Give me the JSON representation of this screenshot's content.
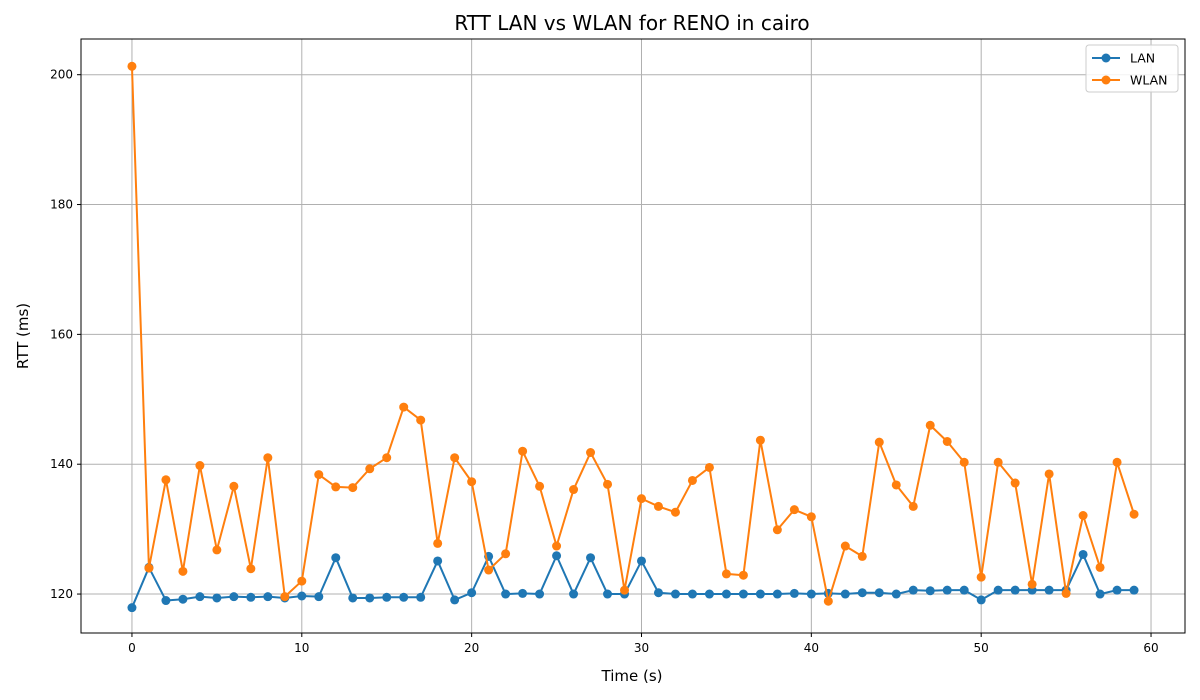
{
  "chart_data": {
    "type": "line",
    "title": "RTT LAN vs WLAN for RENO in cairo",
    "xlabel": "Time (s)",
    "ylabel": "RTT (ms)",
    "xlim": [
      -3,
      62
    ],
    "ylim": [
      114,
      205.5
    ],
    "xticks": [
      0,
      10,
      20,
      30,
      40,
      50,
      60
    ],
    "yticks": [
      120,
      140,
      160,
      180,
      200
    ],
    "grid": true,
    "legend_position": "top-right",
    "x": [
      0,
      1,
      2,
      3,
      4,
      5,
      6,
      7,
      8,
      9,
      10,
      11,
      12,
      13,
      14,
      15,
      16,
      17,
      18,
      19,
      20,
      21,
      22,
      23,
      24,
      25,
      26,
      27,
      28,
      29,
      30,
      31,
      32,
      33,
      34,
      35,
      36,
      37,
      38,
      39,
      40,
      41,
      42,
      43,
      44,
      45,
      46,
      47,
      48,
      49,
      50,
      51,
      52,
      53,
      54,
      55,
      56,
      57,
      58,
      59
    ],
    "series": [
      {
        "name": "LAN",
        "color": "#1f77b4",
        "values": [
          117.9,
          124.1,
          119.0,
          119.2,
          119.6,
          119.4,
          119.6,
          119.5,
          119.6,
          119.4,
          119.7,
          119.6,
          125.6,
          119.4,
          119.4,
          119.5,
          119.5,
          119.5,
          125.1,
          119.1,
          120.2,
          125.8,
          120.0,
          120.1,
          120.0,
          125.9,
          120.0,
          125.6,
          120.0,
          120.0,
          125.1,
          120.2,
          120.0,
          120.0,
          120.0,
          120.0,
          120.0,
          120.0,
          120.0,
          120.1,
          120.0,
          120.1,
          120.0,
          120.2,
          120.2,
          120.0,
          120.6,
          120.5,
          120.6,
          120.6,
          119.1,
          120.6,
          120.6,
          120.6,
          120.6,
          120.6,
          126.1,
          120.0,
          120.6,
          120.6
        ]
      },
      {
        "name": "WLAN",
        "color": "#ff7f0e",
        "values": [
          201.3,
          124.0,
          137.6,
          123.5,
          139.8,
          126.8,
          136.6,
          123.9,
          141.0,
          119.6,
          122.0,
          138.4,
          136.5,
          136.4,
          139.3,
          141.0,
          148.8,
          146.8,
          127.8,
          141.0,
          137.3,
          123.7,
          126.2,
          142.0,
          136.6,
          127.4,
          136.1,
          141.8,
          136.9,
          120.6,
          134.7,
          133.5,
          132.6,
          137.5,
          139.5,
          123.1,
          122.9,
          143.7,
          129.9,
          133.0,
          131.9,
          118.9,
          127.4,
          125.8,
          143.4,
          136.8,
          133.5,
          146.0,
          143.5,
          140.3,
          122.6,
          140.3,
          137.1,
          121.5,
          138.5,
          120.1,
          132.1,
          124.1,
          140.3,
          132.3
        ]
      }
    ]
  }
}
